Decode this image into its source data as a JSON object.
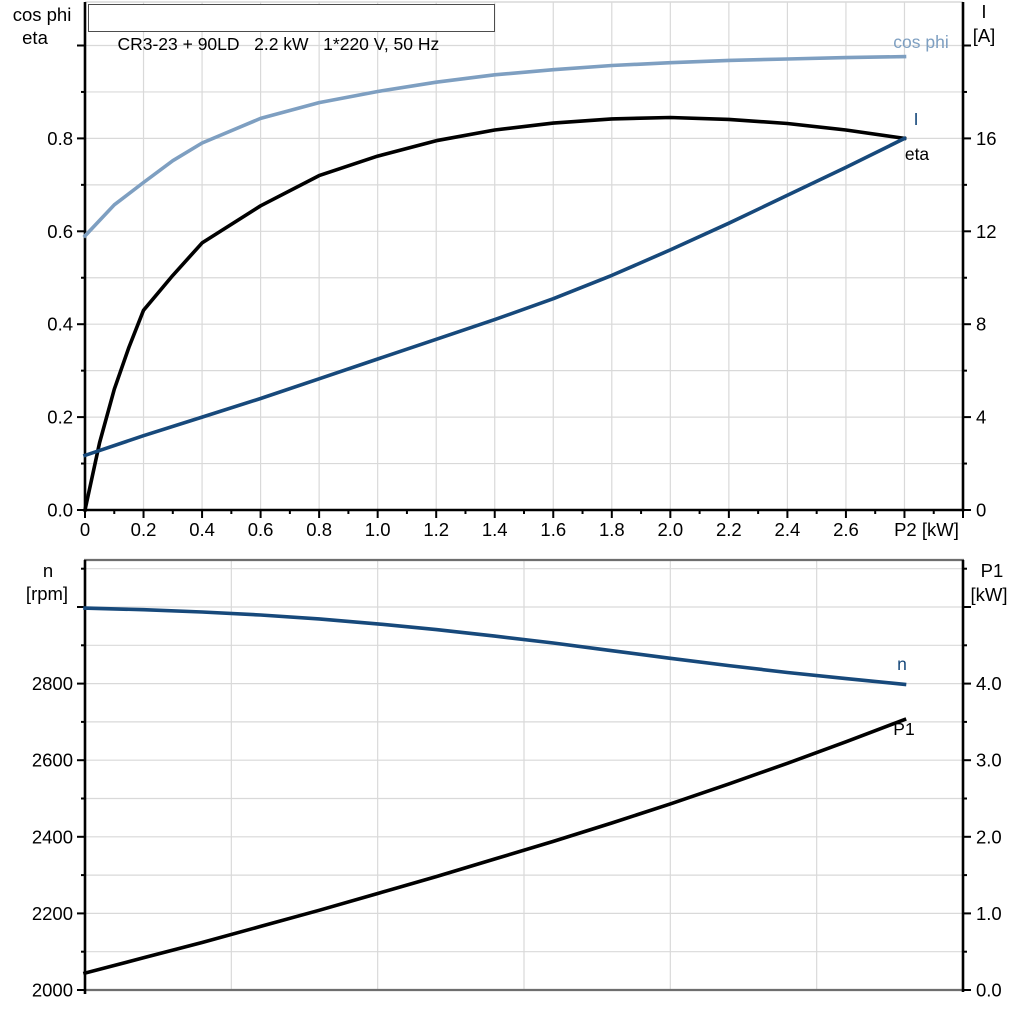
{
  "title": "CR3-23 + 90LD   2.2 kW   1*220 V, 50 Hz",
  "colors": {
    "dark_blue": "#17497b",
    "light_blue": "#7e9fc1",
    "black": "#000000",
    "grid": "#d9d9d9",
    "frame_gray": "#6e6e6e"
  },
  "labels": {
    "top_left_line1": "cos phi",
    "top_left_line2": "eta",
    "top_right_line1": "I",
    "top_right_line2": "[A]",
    "bottom_left_line1": "n",
    "bottom_left_line2": "[rpm]",
    "bottom_right_line1": "P1",
    "bottom_right_line2": "[kW]"
  },
  "chart_data": [
    {
      "type": "line",
      "title": "CR3-23 + 90LD 2.2 kW 1*220 V, 50 Hz",
      "x_axis": {
        "label": "P2 [kW]",
        "label_v": 2.8,
        "unit": "kW",
        "min": 0,
        "max": 3.0,
        "major_step": 0.2,
        "minor_step": 0.1,
        "grid_step": 0.2,
        "ticks": [
          {
            "v": 0,
            "t": "0"
          },
          {
            "v": 0.2,
            "t": "0.2"
          },
          {
            "v": 0.4,
            "t": "0.4"
          },
          {
            "v": 0.6,
            "t": "0.6"
          },
          {
            "v": 0.8,
            "t": "0.8"
          },
          {
            "v": 1.0,
            "t": "1.0"
          },
          {
            "v": 1.2,
            "t": "1.2"
          },
          {
            "v": 1.4,
            "t": "1.4"
          },
          {
            "v": 1.6,
            "t": "1.6"
          },
          {
            "v": 1.8,
            "t": "1.8"
          },
          {
            "v": 2.0,
            "t": "2.0"
          },
          {
            "v": 2.2,
            "t": "2.2"
          },
          {
            "v": 2.4,
            "t": "2.4"
          },
          {
            "v": 2.6,
            "t": "2.6"
          }
        ]
      },
      "left_axis": {
        "label": "cos phi / eta",
        "min": 0,
        "max": 1.1,
        "major_step": 0.2,
        "minor_step": 0.1,
        "grid_step": 0.1,
        "tick_to": 1.0,
        "ticks": [
          {
            "v": 0,
            "t": "0.0"
          },
          {
            "v": 0.2,
            "t": "0.2"
          },
          {
            "v": 0.4,
            "t": "0.4"
          },
          {
            "v": 0.6,
            "t": "0.6"
          },
          {
            "v": 0.8,
            "t": "0.8"
          }
        ]
      },
      "right_axis": {
        "label": "I [A]",
        "min": 0,
        "max": 21.8,
        "major_step": 4,
        "minor_step": 2,
        "tick_to": 20,
        "ticks": [
          {
            "v": 0,
            "t": "0"
          },
          {
            "v": 4,
            "t": "4"
          },
          {
            "v": 8,
            "t": "8"
          },
          {
            "v": 12,
            "t": "12"
          },
          {
            "v": 16,
            "t": "16"
          }
        ]
      },
      "series": [
        {
          "id": "cos-phi",
          "name": "cos phi",
          "color": "light_blue",
          "axis": "left",
          "x": [
            0,
            0.1,
            0.2,
            0.3,
            0.4,
            0.6,
            0.8,
            1.0,
            1.2,
            1.4,
            1.6,
            1.8,
            2.0,
            2.2,
            2.4,
            2.6,
            2.8
          ],
          "y": [
            0.59,
            0.657,
            0.705,
            0.752,
            0.79,
            0.843,
            0.877,
            0.901,
            0.921,
            0.937,
            0.948,
            0.957,
            0.963,
            0.968,
            0.971,
            0.974,
            0.976
          ]
        },
        {
          "id": "eta",
          "name": "eta",
          "color": "black",
          "axis": "left",
          "x": [
            0,
            0.05,
            0.1,
            0.15,
            0.2,
            0.3,
            0.4,
            0.6,
            0.8,
            1.0,
            1.2,
            1.4,
            1.6,
            1.8,
            2.0,
            2.2,
            2.4,
            2.6,
            2.8
          ],
          "y": [
            0,
            0.145,
            0.26,
            0.35,
            0.43,
            0.505,
            0.575,
            0.655,
            0.72,
            0.762,
            0.795,
            0.818,
            0.833,
            0.842,
            0.845,
            0.841,
            0.832,
            0.818,
            0.8
          ]
        },
        {
          "id": "current",
          "name": "I",
          "color": "dark_blue",
          "axis": "right",
          "x": [
            0,
            0.2,
            0.4,
            0.6,
            0.8,
            1.0,
            1.2,
            1.4,
            1.6,
            1.8,
            2.0,
            2.2,
            2.4,
            2.6,
            2.8
          ],
          "y": [
            2.35,
            3.2,
            4.0,
            4.8,
            5.65,
            6.5,
            7.35,
            8.2,
            9.1,
            10.1,
            11.2,
            12.35,
            13.55,
            14.75,
            16.0
          ]
        }
      ]
    },
    {
      "type": "line",
      "x_axis": {
        "label": "",
        "unit": "kW",
        "min": 0,
        "max": 3.0,
        "grid_step": 0.5,
        "ticks": []
      },
      "left_axis": {
        "label": "n [rpm]",
        "min": 2000,
        "max": 3120,
        "major_step": 200,
        "minor_step": 100,
        "grid_step": 100,
        "tick_to": 3100,
        "ticks": [
          {
            "v": 2000,
            "t": "2000"
          },
          {
            "v": 2200,
            "t": "2200"
          },
          {
            "v": 2400,
            "t": "2400"
          },
          {
            "v": 2600,
            "t": "2600"
          },
          {
            "v": 2800,
            "t": "2800"
          }
        ]
      },
      "right_axis": {
        "label": "P1 [kW]",
        "min": 0,
        "max": 5.6,
        "major_step": 1.0,
        "minor_step": 0.5,
        "tick_to": 5.5,
        "ticks": [
          {
            "v": 0,
            "t": "0.0"
          },
          {
            "v": 1,
            "t": "1.0"
          },
          {
            "v": 2,
            "t": "2.0"
          },
          {
            "v": 3,
            "t": "3.0"
          },
          {
            "v": 4,
            "t": "4.0"
          }
        ]
      },
      "series": [
        {
          "id": "speed",
          "name": "n",
          "color": "dark_blue",
          "axis": "left",
          "x": [
            0,
            0.2,
            0.4,
            0.6,
            0.8,
            1.0,
            1.2,
            1.4,
            1.6,
            1.8,
            2.0,
            2.2,
            2.4,
            2.6,
            2.8
          ],
          "y": [
            2997,
            2993,
            2987,
            2979,
            2969,
            2956,
            2941,
            2924,
            2906,
            2886,
            2866,
            2847,
            2829,
            2813,
            2798
          ]
        },
        {
          "id": "input-power",
          "name": "P1",
          "color": "black",
          "axis": "right",
          "x": [
            0,
            0.2,
            0.4,
            0.6,
            0.8,
            1.0,
            1.2,
            1.4,
            1.6,
            1.8,
            2.0,
            2.2,
            2.4,
            2.6,
            2.8
          ],
          "y": [
            0.22,
            0.42,
            0.62,
            0.83,
            1.04,
            1.26,
            1.48,
            1.71,
            1.94,
            2.18,
            2.43,
            2.69,
            2.96,
            3.24,
            3.53
          ]
        }
      ]
    }
  ]
}
